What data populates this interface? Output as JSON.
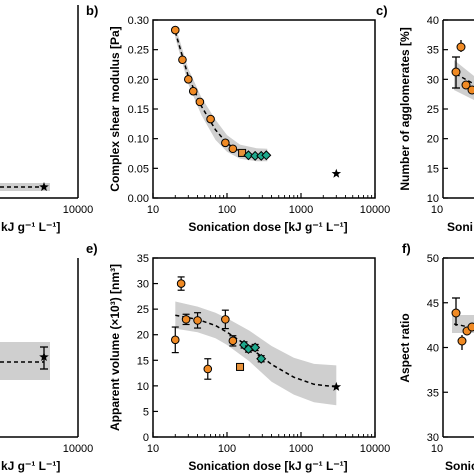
{
  "figure": {
    "colors": {
      "orange": "#f08a24",
      "orange_sq": "#e8923a",
      "teal": "#1fa88c",
      "band": "#cfcfcf",
      "black": "#000000"
    },
    "panels": {
      "a": {
        "xlabel": "kJ g⁻¹ L⁻¹]",
        "xtick_right": "10000"
      },
      "b": {
        "letter": "b)"
      },
      "c": {
        "letter": "c)",
        "ylabel": "Number of agglomerates [%]",
        "yticks": [
          "40",
          "35",
          "30",
          "25",
          "20",
          "15",
          "10"
        ],
        "xlabel": "Soni",
        "xtick_left": "10"
      },
      "d": {
        "xlabel": "kJ g⁻¹ L⁻¹]",
        "xtick_right": "10000"
      },
      "e": {
        "letter": "e)"
      },
      "f": {
        "letter": "f)",
        "ylabel": "Aspect ratio",
        "yticks": [
          "50",
          "45",
          "40",
          "35",
          "30"
        ],
        "xlabel": "Sonic",
        "xtick_left": "10"
      }
    }
  },
  "chart_data": [
    {
      "panel": "b",
      "type": "scatter",
      "xlabel": "Sonication dose [kJ g⁻¹ L⁻¹]",
      "ylabel": "Complex shear modulus [Pa]",
      "xscale": "log",
      "xlim": [
        10,
        10000
      ],
      "ylim": [
        0,
        0.3
      ],
      "xticks": [
        10,
        100,
        1000,
        10000
      ],
      "yticks": [
        0,
        0.05,
        0.1,
        0.15,
        0.2,
        0.25,
        0.3
      ],
      "series": [
        {
          "marker": "circle",
          "color": "orange",
          "x": [
            20,
            25,
            30,
            35,
            43,
            60,
            95,
            120
          ],
          "y": [
            0.283,
            0.233,
            0.2,
            0.18,
            0.162,
            0.133,
            0.093,
            0.083
          ]
        },
        {
          "marker": "square",
          "color": "orange",
          "x": [
            160
          ],
          "y": [
            0.076
          ]
        },
        {
          "marker": "diamond",
          "color": "teal",
          "x": [
            195,
            240,
            290,
            340
          ],
          "y": [
            0.072,
            0.071,
            0.071,
            0.072
          ]
        },
        {
          "marker": "star",
          "color": "black",
          "x": [
            3000
          ],
          "y": [
            0.041
          ]
        }
      ],
      "fit": {
        "x": [
          20,
          30,
          45,
          70,
          100,
          150,
          250,
          350
        ],
        "y": [
          0.28,
          0.205,
          0.155,
          0.115,
          0.092,
          0.078,
          0.072,
          0.072
        ]
      },
      "band": {
        "x": [
          20,
          30,
          45,
          70,
          100,
          150,
          250,
          350
        ],
        "upper": [
          0.29,
          0.218,
          0.17,
          0.132,
          0.106,
          0.09,
          0.084,
          0.083
        ],
        "lower": [
          0.27,
          0.192,
          0.14,
          0.098,
          0.078,
          0.066,
          0.062,
          0.062
        ]
      }
    },
    {
      "panel": "e",
      "type": "scatter",
      "xlabel": "Sonication dose [kJ g⁻¹ L⁻¹]",
      "ylabel": "Apparent volume (×10³) [nm³]",
      "xscale": "log",
      "xlim": [
        10,
        10000
      ],
      "ylim": [
        0,
        35
      ],
      "xticks": [
        10,
        100,
        1000,
        10000
      ],
      "yticks": [
        0,
        5,
        10,
        15,
        20,
        25,
        30,
        35
      ],
      "series": [
        {
          "marker": "circle",
          "color": "orange",
          "x": [
            20,
            24,
            28,
            40,
            55,
            95,
            120
          ],
          "y": [
            19.0,
            30.0,
            23.0,
            22.8,
            13.3,
            23.0,
            18.8
          ],
          "err": [
            2.5,
            1.3,
            1.0,
            1.5,
            2.0,
            1.8,
            1.0
          ]
        },
        {
          "marker": "square",
          "color": "orange",
          "x": [
            150
          ],
          "y": [
            13.7
          ]
        },
        {
          "marker": "diamond",
          "color": "teal",
          "x": [
            170,
            195,
            240,
            290
          ],
          "y": [
            18.0,
            17.2,
            17.5,
            15.3
          ],
          "err": [
            0.6,
            0.6,
            0.6,
            0.6
          ]
        },
        {
          "marker": "star",
          "color": "black",
          "x": [
            3000
          ],
          "y": [
            9.8
          ]
        }
      ],
      "fit": {
        "x": [
          20,
          40,
          70,
          100,
          200,
          400,
          800,
          1500,
          3000
        ],
        "y": [
          23.8,
          23.0,
          21.8,
          20.5,
          17.6,
          14.2,
          11.7,
          10.3,
          9.8
        ]
      },
      "band": {
        "x": [
          20,
          40,
          70,
          100,
          200,
          400,
          800,
          1500,
          3000
        ],
        "upper": [
          26.5,
          25.5,
          24.3,
          23.2,
          20.8,
          17.8,
          15.5,
          14.3,
          14.0
        ],
        "lower": [
          21.2,
          20.5,
          19.3,
          18.0,
          14.8,
          10.8,
          8.3,
          6.8,
          6.2
        ]
      }
    }
  ]
}
